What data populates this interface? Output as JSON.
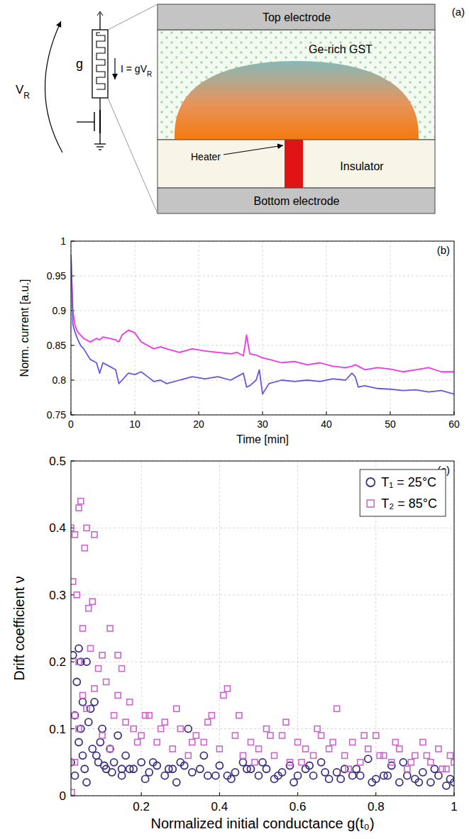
{
  "diagram": {
    "label": "(a)",
    "circuit": {
      "conductance": "g",
      "voltage": {
        "text": "V",
        "sub": "R"
      },
      "current": {
        "text": "I = gV",
        "sub": "R"
      }
    },
    "layers": {
      "top": "Top electrode",
      "gst": "Ge-rich GST",
      "heater": "Heater",
      "insulator": "Insulator",
      "bottom": "Bottom electrode"
    }
  },
  "chart_data": [
    {
      "type": "line",
      "annotations": [
        "(b)"
      ],
      "x_label": "Time [min]",
      "y_label": "Norm. current [a.u.]",
      "xlim": [
        0,
        60
      ],
      "ylim": [
        0.75,
        1
      ],
      "xticks": [
        0,
        10,
        20,
        30,
        40,
        50,
        60
      ],
      "yticks": [
        0.75,
        0.8,
        0.85,
        0.9,
        0.95,
        1
      ],
      "grid": true,
      "x": [
        0,
        0.3,
        0.6,
        1,
        1.5,
        2,
        3,
        4,
        4.5,
        5,
        6,
        7,
        7.5,
        8,
        9,
        10,
        11,
        12,
        13,
        14,
        15,
        17,
        19,
        21,
        23,
        25,
        26,
        27,
        27.5,
        28,
        29,
        29.5,
        30,
        31,
        33,
        35,
        37,
        39,
        41,
        43,
        44,
        44.5,
        45,
        46,
        48,
        50,
        52,
        54,
        56,
        58,
        60
      ],
      "series": [
        {
          "color": "#f035ea",
          "line_style": "solid",
          "values": [
            0.98,
            0.9,
            0.88,
            0.87,
            0.865,
            0.86,
            0.855,
            0.86,
            0.858,
            0.862,
            0.86,
            0.858,
            0.855,
            0.865,
            0.872,
            0.868,
            0.855,
            0.85,
            0.845,
            0.848,
            0.845,
            0.84,
            0.845,
            0.842,
            0.84,
            0.838,
            0.84,
            0.835,
            0.865,
            0.838,
            0.836,
            0.834,
            0.832,
            0.83,
            0.825,
            0.827,
            0.822,
            0.825,
            0.82,
            0.818,
            0.82,
            0.822,
            0.82,
            0.815,
            0.818,
            0.816,
            0.812,
            0.815,
            0.818,
            0.812,
            0.812
          ]
        },
        {
          "color": "#6a55e0",
          "line_style": "solid",
          "values": [
            0.98,
            0.88,
            0.87,
            0.86,
            0.85,
            0.845,
            0.83,
            0.825,
            0.81,
            0.825,
            0.82,
            0.815,
            0.795,
            0.8,
            0.81,
            0.808,
            0.812,
            0.805,
            0.798,
            0.8,
            0.795,
            0.8,
            0.805,
            0.802,
            0.805,
            0.8,
            0.805,
            0.81,
            0.79,
            0.792,
            0.8,
            0.815,
            0.78,
            0.795,
            0.8,
            0.798,
            0.8,
            0.798,
            0.802,
            0.8,
            0.81,
            0.805,
            0.79,
            0.792,
            0.788,
            0.787,
            0.785,
            0.786,
            0.783,
            0.785,
            0.78
          ]
        }
      ]
    },
    {
      "type": "scatter",
      "annotations": [
        "(c)"
      ],
      "x_label": "Normalized initial conductance g(t₀)",
      "y_label": "Drift coefficient ν",
      "xlim": [
        0.02,
        1
      ],
      "ylim": [
        0,
        0.5
      ],
      "xticks": [
        0.2,
        0.4,
        0.6,
        0.8,
        1
      ],
      "yticks": [
        0,
        0.1,
        0.2,
        0.3,
        0.4,
        0.5
      ],
      "grid": true,
      "legend": "top-right",
      "series": [
        {
          "name": "T₁ = 25°C",
          "color": "#3d3280",
          "marker": "circle",
          "x": [
            0.02,
            0.025,
            0.03,
            0.03,
            0.035,
            0.04,
            0.04,
            0.045,
            0.05,
            0.05,
            0.055,
            0.06,
            0.065,
            0.07,
            0.075,
            0.08,
            0.09,
            0.1,
            0.11,
            0.12,
            0.13,
            0.14,
            0.15,
            0.16,
            0.18,
            0.2,
            0.22,
            0.24,
            0.26,
            0.28,
            0.3,
            0.32,
            0.33,
            0.35,
            0.37,
            0.4,
            0.42,
            0.44,
            0.46,
            0.48,
            0.5,
            0.52,
            0.54,
            0.56,
            0.58,
            0.6,
            0.62,
            0.64,
            0.66,
            0.68,
            0.7,
            0.72,
            0.74,
            0.76,
            0.78,
            0.8,
            0.82,
            0.84,
            0.86,
            0.88,
            0.9,
            0.92,
            0.94,
            0.96,
            0.98,
            1.0,
            0.15,
            0.17,
            0.21,
            0.23,
            0.27,
            0.29,
            0.31,
            0.36,
            0.39,
            0.43,
            0.47,
            0.51,
            0.55,
            0.59,
            0.63,
            0.67,
            0.71,
            0.75,
            0.79,
            0.83,
            0.87,
            0.91,
            0.95,
            0.99,
            0.045,
            0.06,
            0.085,
            0.095,
            0.105,
            0.125
          ],
          "values": [
            0.05,
            0.21,
            0.12,
            0.03,
            0.17,
            0.22,
            0.08,
            0.1,
            0.14,
            0.06,
            0.04,
            0.2,
            0.11,
            0.13,
            0.07,
            0.14,
            0.05,
            0.1,
            0.04,
            0.07,
            0.05,
            0.09,
            0.04,
            0.06,
            0.04,
            0.05,
            0.035,
            0.045,
            0.03,
            0.04,
            0.05,
            0.1,
            0.035,
            0.04,
            0.03,
            0.045,
            0.03,
            0.035,
            0.05,
            0.04,
            0.03,
            0.04,
            0.025,
            0.035,
            0.045,
            0.03,
            0.04,
            0.03,
            0.05,
            0.025,
            0.035,
            0.04,
            0.03,
            0.03,
            0.055,
            0.025,
            0.03,
            0.045,
            0.02,
            0.03,
            0.025,
            0.035,
            0.02,
            0.03,
            0.015,
            0.02,
            0.03,
            0.04,
            0.025,
            0.05,
            0.04,
            0.02,
            0.045,
            0.06,
            0.03,
            0.025,
            0.04,
            0.05,
            0.03,
            0.02,
            0.045,
            0.035,
            0.025,
            0.04,
            0.02,
            0.03,
            0.05,
            0.02,
            0.04,
            0.025,
            0.2,
            0.02,
            0.06,
            0.08,
            0.045,
            0.035
          ]
        },
        {
          "name": "T₂ = 85°C",
          "color": "#cc66cc",
          "marker": "square",
          "x": [
            0.02,
            0.022,
            0.025,
            0.03,
            0.03,
            0.035,
            0.04,
            0.04,
            0.045,
            0.05,
            0.05,
            0.055,
            0.06,
            0.065,
            0.07,
            0.075,
            0.08,
            0.09,
            0.1,
            0.11,
            0.12,
            0.13,
            0.14,
            0.15,
            0.16,
            0.18,
            0.2,
            0.22,
            0.24,
            0.26,
            0.28,
            0.3,
            0.32,
            0.34,
            0.36,
            0.38,
            0.4,
            0.42,
            0.44,
            0.46,
            0.48,
            0.5,
            0.52,
            0.54,
            0.56,
            0.58,
            0.6,
            0.62,
            0.64,
            0.66,
            0.68,
            0.7,
            0.72,
            0.74,
            0.76,
            0.78,
            0.8,
            0.82,
            0.84,
            0.86,
            0.88,
            0.9,
            0.92,
            0.94,
            0.96,
            0.98,
            1.0,
            0.03,
            0.04,
            0.06,
            0.08,
            0.1,
            0.12,
            0.14,
            0.17,
            0.19,
            0.21,
            0.25,
            0.29,
            0.33,
            0.37,
            0.41,
            0.45,
            0.49,
            0.53,
            0.57,
            0.61,
            0.65,
            0.69,
            0.73,
            0.77,
            0.81,
            0.85,
            0.89,
            0.93,
            0.97,
            0.99
          ],
          "values": [
            0.4,
            0.005,
            0.32,
            0.39,
            0.12,
            0.3,
            0.43,
            0.2,
            0.44,
            0.25,
            0.15,
            0.37,
            0.4,
            0.28,
            0.22,
            0.29,
            0.39,
            0.19,
            0.21,
            0.17,
            0.25,
            0.12,
            0.15,
            0.19,
            0.11,
            0.1,
            0.09,
            0.12,
            0.08,
            0.11,
            0.07,
            0.1,
            0.06,
            0.09,
            0.08,
            0.12,
            0.07,
            0.16,
            0.09,
            0.06,
            0.08,
            0.07,
            0.1,
            0.06,
            0.09,
            0.05,
            0.08,
            0.07,
            0.06,
            0.09,
            0.07,
            0.13,
            0.06,
            0.08,
            0.05,
            0.07,
            0.09,
            0.06,
            0.05,
            0.07,
            0.04,
            0.06,
            0.08,
            0.05,
            0.07,
            0.04,
            0.05,
            0.05,
            0.1,
            0.13,
            0.16,
            0.09,
            0.07,
            0.21,
            0.14,
            0.08,
            0.12,
            0.1,
            0.13,
            0.08,
            0.11,
            0.15,
            0.12,
            0.05,
            0.09,
            0.11,
            0.05,
            0.1,
            0.08,
            0.04,
            0.09,
            0.06,
            0.08,
            0.05,
            0.06,
            0.04,
            0.06
          ]
        }
      ]
    }
  ]
}
